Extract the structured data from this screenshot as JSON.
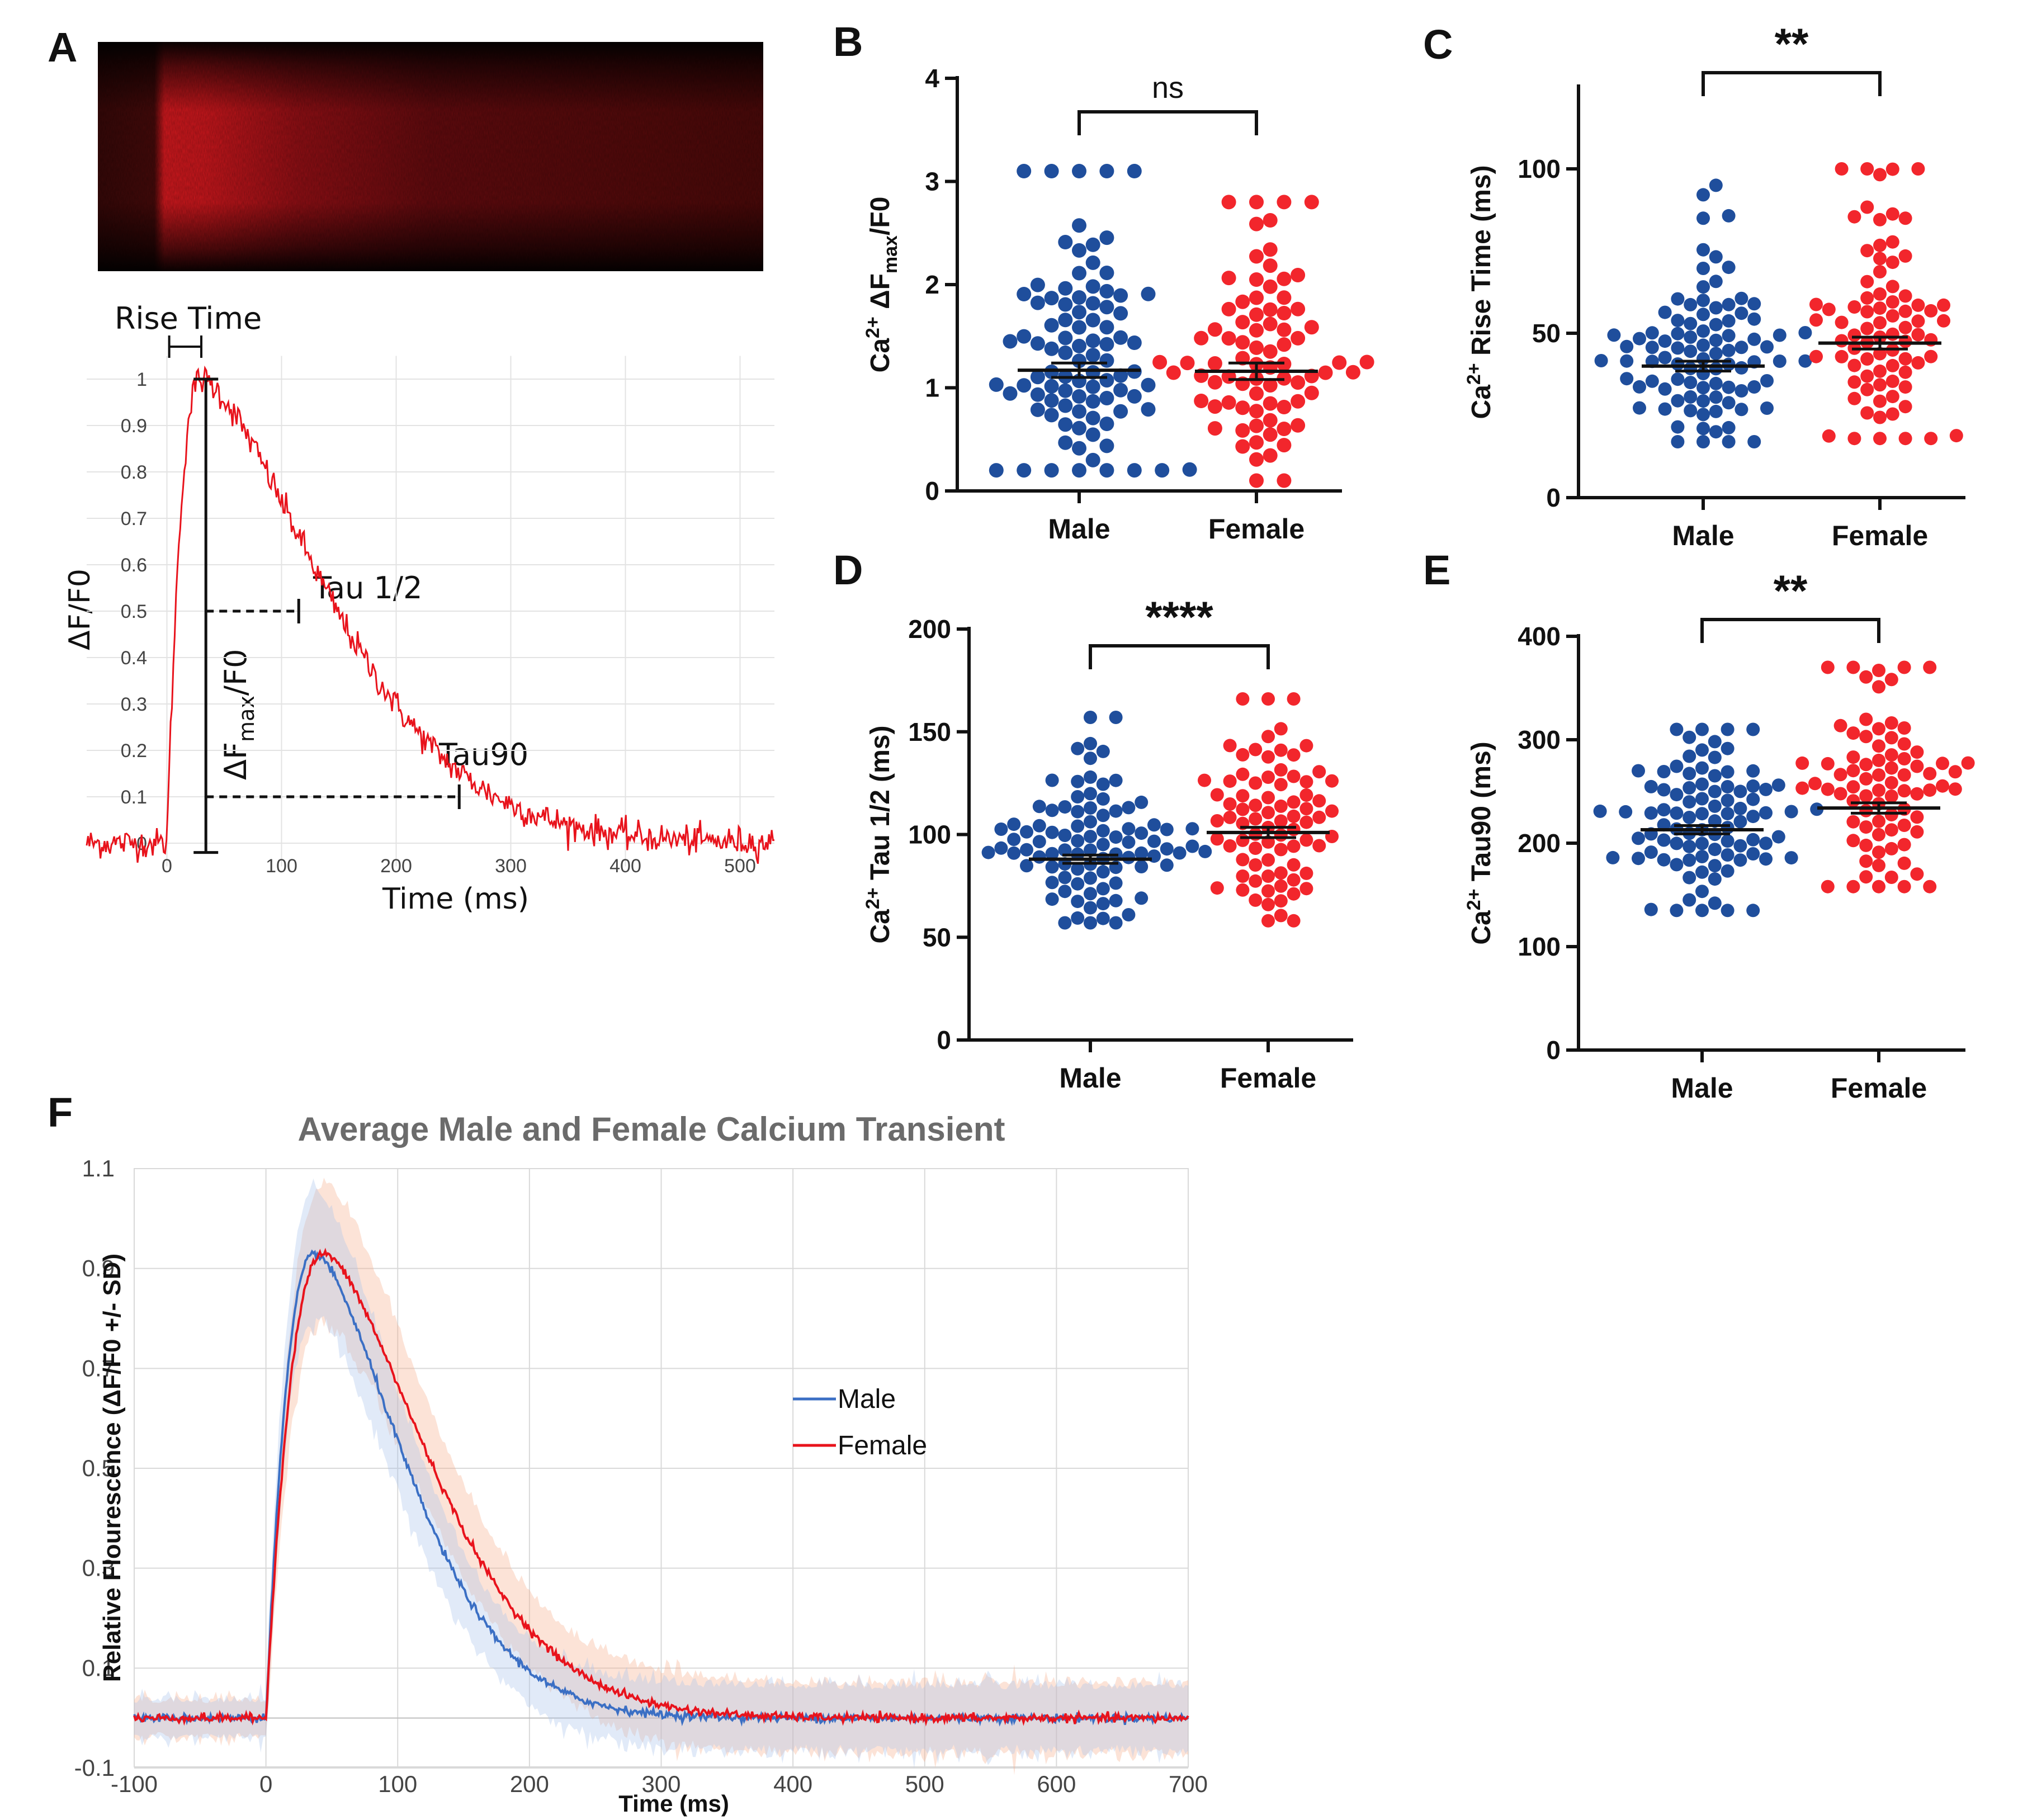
{
  "colors": {
    "male": "#1f4e9c",
    "female": "#f2262c",
    "traceRed": "#e8131c",
    "fMale": "#3b6fc4",
    "fFemale": "#e8131c"
  },
  "panels": {
    "A": "A",
    "B": "B",
    "C": "C",
    "D": "D",
    "E": "E",
    "F": "F"
  },
  "panelA": {
    "rise_time": "Rise Time",
    "ylabel": "ΔF/F0",
    "xlabel": "Time (ms)",
    "tau_half": "Tau 1/2",
    "tau90": "Tau90",
    "dfmax_pre": "ΔF",
    "dfmax_sub": "max",
    "dfmax_post": "/F0",
    "yticks": [
      "0",
      "0.1",
      "0.2",
      "0.3",
      "0.4",
      "0.5",
      "0.6",
      "0.7",
      "0.8",
      "0.9",
      "1"
    ],
    "xticks": [
      "0",
      "100",
      "200",
      "300",
      "400",
      "500"
    ]
  },
  "chart_data": [
    {
      "id": "A",
      "type": "line",
      "title": "",
      "xlabel": "Time (ms)",
      "ylabel": "ΔF/F0",
      "xlim": [
        -70,
        530
      ],
      "ylim": [
        -0.05,
        1.05
      ],
      "series": [
        {
          "name": "trace",
          "model": "rise 0-30 ms, peak 1.0 at ~30 ms, tau1/2 at ~115 ms, tau90 at ~255 ms, baseline ~0"
        }
      ],
      "annotations": [
        "Rise Time",
        "Tau 1/2",
        "Tau90",
        "ΔFmax/F0"
      ]
    },
    {
      "id": "B",
      "type": "scatter",
      "ylabel": "Ca2+ ΔFmax/F0",
      "categories": [
        "Male",
        "Female"
      ],
      "ylim": [
        0,
        4
      ],
      "yticks": [
        "0",
        "1",
        "2",
        "3",
        "4"
      ],
      "series": [
        {
          "name": "Male",
          "mean": 1.17,
          "sem": 0.07,
          "n": 92,
          "min": 0.2,
          "max": 3.1
        },
        {
          "name": "Female",
          "mean": 1.16,
          "sem": 0.08,
          "n": 80,
          "min": 0.1,
          "max": 2.8
        }
      ],
      "significance": "ns"
    },
    {
      "id": "C",
      "type": "scatter",
      "ylabel": "Ca2+ Rise Time (ms)",
      "categories": [
        "Male",
        "Female"
      ],
      "ylim": [
        0,
        125
      ],
      "yticks": [
        "0",
        "50",
        "100"
      ],
      "series": [
        {
          "name": "Male",
          "mean": 40,
          "sem": 1.5,
          "n": 92,
          "min": 17,
          "max": 95
        },
        {
          "name": "Female",
          "mean": 47,
          "sem": 1.8,
          "n": 80,
          "min": 18,
          "max": 100
        }
      ],
      "significance": "**"
    },
    {
      "id": "D",
      "type": "scatter",
      "ylabel": "Ca2+ Tau 1/2 (ms)",
      "categories": [
        "Male",
        "Female"
      ],
      "ylim": [
        0,
        200
      ],
      "yticks": [
        "0",
        "50",
        "100",
        "150",
        "200"
      ],
      "series": [
        {
          "name": "Male",
          "mean": 88,
          "sem": 2,
          "n": 92,
          "min": 57,
          "max": 157
        },
        {
          "name": "Female",
          "mean": 101,
          "sem": 2.5,
          "n": 80,
          "min": 58,
          "max": 166
        }
      ],
      "significance": "****"
    },
    {
      "id": "E",
      "type": "scatter",
      "ylabel": "Ca2+ Tau90 (ms)",
      "categories": [
        "Male",
        "Female"
      ],
      "ylim": [
        0,
        400
      ],
      "yticks": [
        "0",
        "100",
        "200",
        "300",
        "400"
      ],
      "series": [
        {
          "name": "Male",
          "mean": 213,
          "sem": 4,
          "n": 92,
          "min": 135,
          "max": 310
        },
        {
          "name": "Female",
          "mean": 234,
          "sem": 5,
          "n": 80,
          "min": 158,
          "max": 370
        }
      ],
      "significance": "**"
    },
    {
      "id": "F",
      "type": "line",
      "title": "Average Male and Female Calcium Transient",
      "xlabel": "Time (ms)",
      "ylabel": "Relative Flourescence (ΔF/F0 +/- SD)",
      "xlim": [
        -100,
        700
      ],
      "ylim": [
        -0.1,
        1.1
      ],
      "xticks": [
        "-100",
        "0",
        "100",
        "200",
        "300",
        "400",
        "500",
        "600",
        "700"
      ],
      "yticks": [
        "-0.1",
        "0.1",
        "0.3",
        "0.5",
        "0.7",
        "0.9",
        "1.1"
      ],
      "series": [
        {
          "name": "Male",
          "peak_time": 38,
          "peak": 0.93,
          "tau": 95,
          "sd": 0.12
        },
        {
          "name": "Female",
          "peak_time": 45,
          "peak": 0.93,
          "tau": 112,
          "sd": 0.13
        }
      ],
      "legend": [
        "Male",
        "Female"
      ]
    }
  ]
}
